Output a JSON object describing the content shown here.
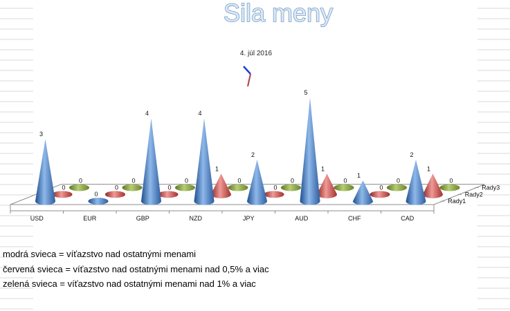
{
  "chart_data": {
    "type": "bar",
    "variant": "3d-cone",
    "title": "Sila meny",
    "subtitle": "4. júl 2016",
    "categories": [
      "USD",
      "EUR",
      "GBP",
      "NZD",
      "JPY",
      "AUD",
      "CHF",
      "CAD"
    ],
    "series": [
      {
        "name": "Rady1",
        "color": "#4a7fc6",
        "values": [
          3,
          0,
          4,
          4,
          2,
          5,
          1,
          2
        ]
      },
      {
        "name": "Rady2",
        "color": "#c9433f",
        "values": [
          0,
          0,
          0,
          1,
          0,
          1,
          0,
          1
        ]
      },
      {
        "name": "Rady3",
        "color": "#8aa83c",
        "values": [
          0,
          0,
          0,
          0,
          0,
          0,
          0,
          0
        ]
      }
    ],
    "ylim": [
      0,
      5
    ],
    "grid": false
  },
  "notes": [
    "modrá svieca = víťazstvo nad ostatnými menami",
    "červená svieca = víťazstvo nad ostatnými menami nad 0,5% a viac",
    "zelená svieca = víťazstvo nad ostatnými menami nad 1% a viac"
  ]
}
